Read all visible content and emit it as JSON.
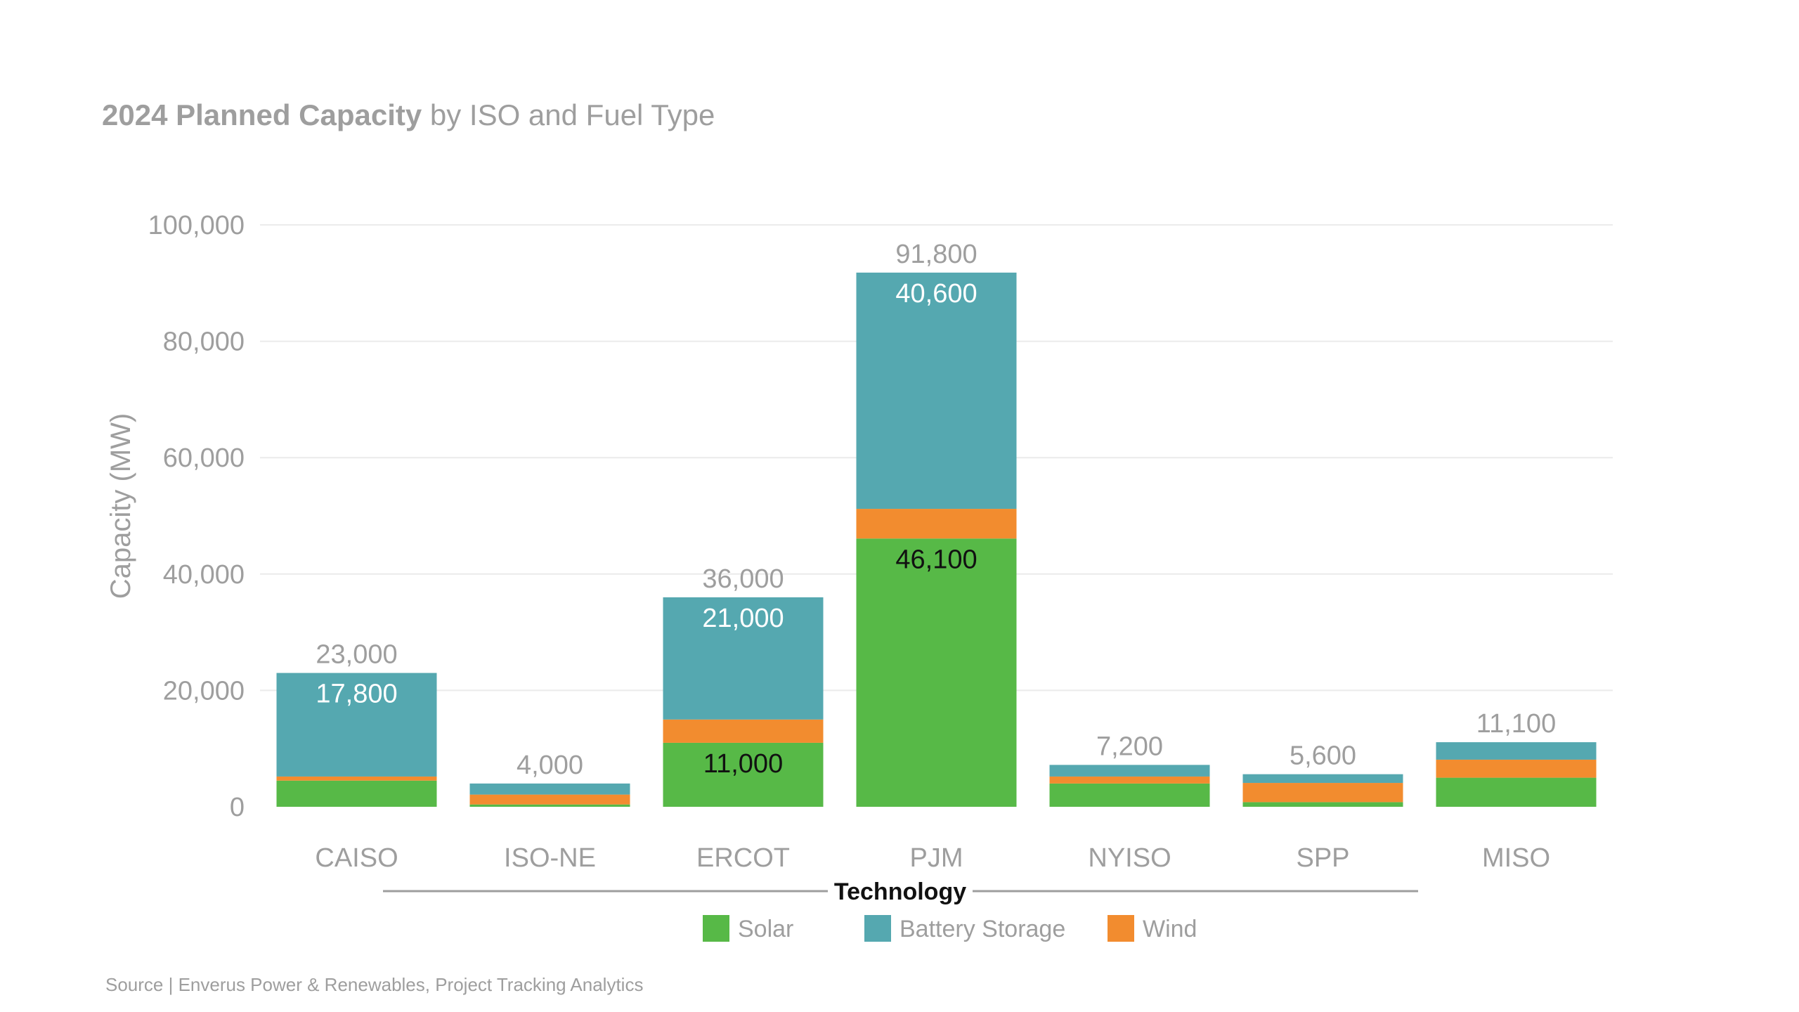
{
  "title": {
    "bold": "2024 Planned Capacity",
    "rest": " by ISO and Fuel Type"
  },
  "source": "Source | Enverus Power & Renewables, Project Tracking Analytics",
  "legend": {
    "title": "Technology",
    "items": [
      {
        "label": "Solar",
        "color": "#57b947"
      },
      {
        "label": "Battery Storage",
        "color": "#55a8b0"
      },
      {
        "label": "Wind",
        "color": "#f28c2f"
      }
    ]
  },
  "chart_data": {
    "type": "bar",
    "stacked": true,
    "title": "2024 Planned Capacity by ISO and Fuel Type",
    "xlabel": "",
    "ylabel": "Capacity (MW)",
    "ylim": [
      0,
      100000
    ],
    "yticks": [
      "0",
      "20,000",
      "40,000",
      "60,000",
      "80,000",
      "100,000"
    ],
    "grid": true,
    "legend_position": "bottom",
    "categories": [
      "CAISO",
      "ISO-NE",
      "ERCOT",
      "PJM",
      "NYISO",
      "SPP",
      "MISO"
    ],
    "series": [
      {
        "name": "Solar",
        "color": "#57b947",
        "values": [
          4500,
          400,
          11000,
          46100,
          4000,
          800,
          5000
        ]
      },
      {
        "name": "Wind",
        "color": "#f28c2f",
        "values": [
          700,
          1700,
          4000,
          5100,
          1200,
          3300,
          3100
        ]
      },
      {
        "name": "Battery Storage",
        "color": "#55a8b0",
        "values": [
          17800,
          1900,
          21000,
          40600,
          2000,
          1500,
          3000
        ]
      }
    ],
    "totals": [
      23000,
      4000,
      36000,
      91800,
      7200,
      5600,
      11100
    ],
    "total_labels": [
      "23,000",
      "4,000",
      "36,000",
      "91,800",
      "7,200",
      "5,600",
      "11,100"
    ],
    "segment_labels": [
      {
        "category": "CAISO",
        "series": "Battery Storage",
        "text": "17,800"
      },
      {
        "category": "ERCOT",
        "series": "Solar",
        "text": "11,000"
      },
      {
        "category": "ERCOT",
        "series": "Battery Storage",
        "text": "21,000"
      },
      {
        "category": "PJM",
        "series": "Solar",
        "text": "46,100"
      },
      {
        "category": "PJM",
        "series": "Battery Storage",
        "text": "40,600"
      }
    ]
  }
}
